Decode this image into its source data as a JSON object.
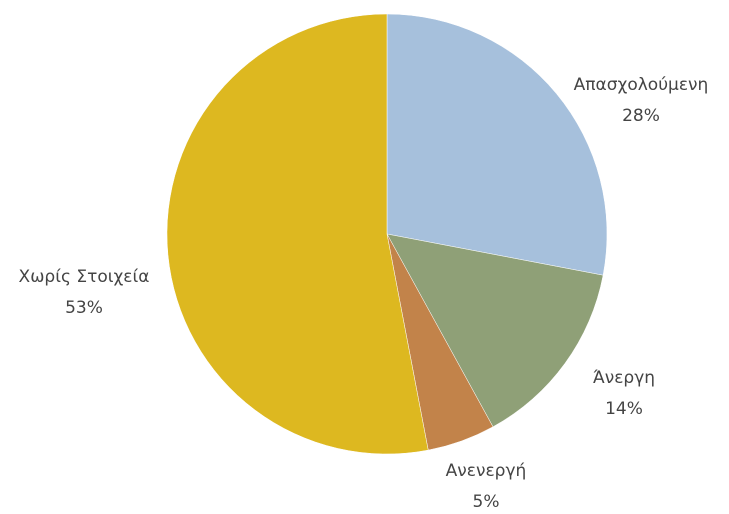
{
  "chart_data": {
    "type": "pie",
    "title": "",
    "slices": [
      {
        "label": "Απασχολούμενη",
        "value": 28,
        "value_label": "28%",
        "color": "#A6C0DC"
      },
      {
        "label": "Άνεργη",
        "value": 14,
        "value_label": "14%",
        "color": "#8FA077"
      },
      {
        "label": "Ανενεργή",
        "value": 5,
        "value_label": "5%",
        "color": "#C2834A"
      },
      {
        "label": "Χωρίς Στοιχεία",
        "value": 53,
        "value_label": "53%",
        "color": "#DDB820"
      }
    ],
    "start_direction": "top",
    "direction": "clockwise",
    "legend": "none",
    "data_labels": "outside"
  }
}
